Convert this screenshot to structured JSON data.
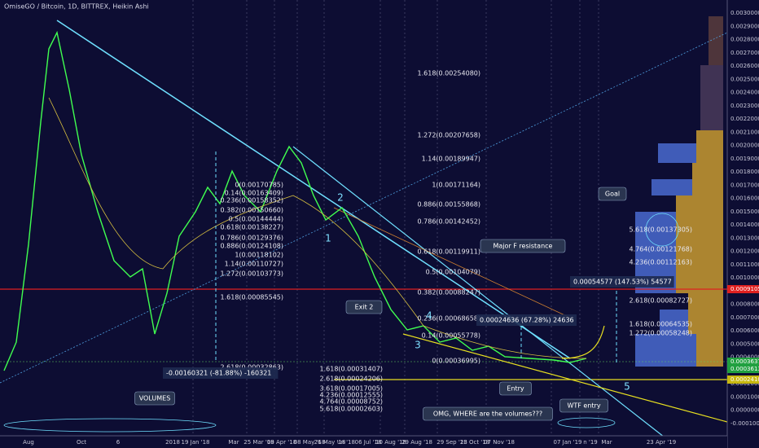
{
  "header": {
    "title": "OmiseGO / Bitcoin, 1D, BITTREX, Heikin Ashi"
  },
  "price_axis": {
    "labels": [
      "0.00300000",
      "0.00290000",
      "0.00280000",
      "0.00270000",
      "0.00260000",
      "0.00250000",
      "0.00240000",
      "0.00230000",
      "0.00220000",
      "0.00210000",
      "0.00200000",
      "0.00190000",
      "0.00180000",
      "0.00170000",
      "0.00160000",
      "0.00150000",
      "0.00140000",
      "0.00130000",
      "0.00120000",
      "0.00110000",
      "0.00100000",
      "0.00090000",
      "0.00080000",
      "0.00070000",
      "0.00060000",
      "0.00050000",
      "0.00040000",
      "0.00030000",
      "0.00020000",
      "0.00010000",
      "0.00000000",
      "-0.00010000"
    ],
    "markers": [
      "0.00091052",
      "0.00036374",
      "0.00036130",
      "0.00024108"
    ]
  },
  "dates": [
    "Aug",
    "Oct",
    "6",
    "2018",
    "19 Jan '18",
    "Mar",
    "25 Mar '18",
    "09 Apr '18",
    "08 May '18",
    "26 May '18",
    "un '18",
    "06 Jul '18",
    "10 Aug '18",
    "29 Aug '18",
    "29 Sep '18",
    "23 Oct '18",
    "07 Nov '18",
    "07 Jan '19",
    "n '19",
    "Mar",
    "23 Apr '19"
  ],
  "fib_left": [
    "0(0.00170785)",
    "0.14(0.00163409)",
    "0.236(0.00158352)",
    "0.382(0.00150660)",
    "0.5(0.00144444)",
    "0.618(0.00138227)",
    "0.786(0.00129376)",
    "0.886(0.00124108)",
    "1(0.00118102)",
    "1.14(0.00110727)",
    "1.272(0.00103773)",
    "1.618(0.00085545)",
    "2.618(0.00032863)"
  ],
  "fib_mid": [
    "1.618(0.00254080)",
    "1.272(0.00207658)",
    "1.14(0.00189947)",
    "1(0.00171164)",
    "0.886(0.00155868)",
    "0.786(0.00142452)",
    "0.618(0.00119911)",
    "0.5(0.00104079)",
    "0.382(0.00088247)",
    "0.236(0.00068658)",
    "0.14(0.00055778)",
    "0(0.00036995)"
  ],
  "fib_low": [
    "1.618(0.00031407)",
    "2.618(0.00024206)",
    "3.618(0.00017005)",
    "4.236(0.00012555)",
    "4.764(0.00008752)",
    "5.618(0.00002603)"
  ],
  "fib_right": [
    "5.618(0.00137305)",
    "4.764(0.00121768)",
    "4.236(0.00112163)",
    "2.618(0.00082727)",
    "1.618(0.00064535)",
    "1.272(0.00058248)"
  ],
  "annotations": [
    "VOLUMES",
    "Exit 2",
    "Entry",
    "WTF entry",
    "OMG, WHERE are the volumes???",
    "Goal",
    "Major F resistance"
  ],
  "waves": [
    "1",
    "2",
    "3",
    "4",
    "5"
  ],
  "measures": [
    "-0.00160321 (-81.88%) -160321",
    "0.00024636 (67.28%) 24636",
    "0.00054577 (147.53%) 54577"
  ]
}
